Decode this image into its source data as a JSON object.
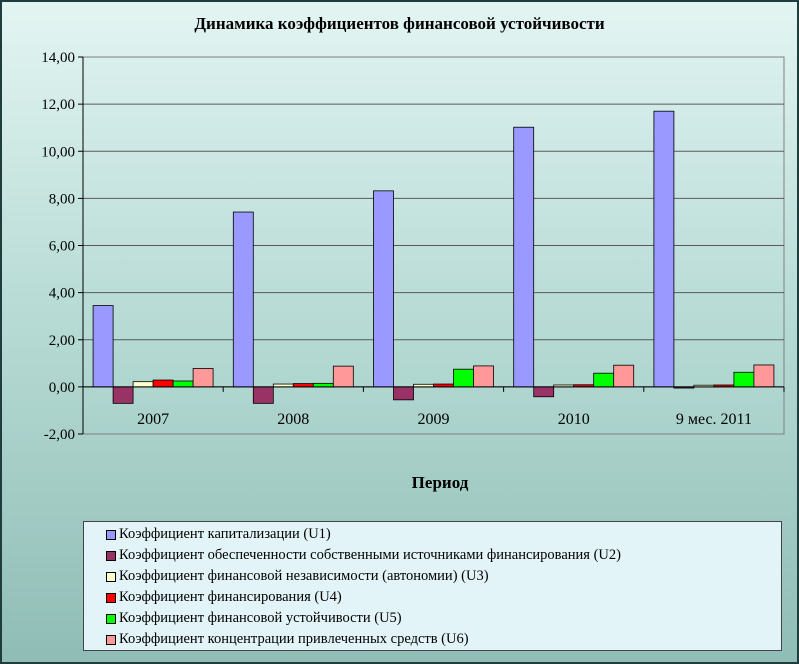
{
  "chart_data": {
    "type": "bar",
    "title": "Динамика коэффициентов  финансовой устойчивости",
    "xlabel": "Период",
    "ylabel": "",
    "ylim": [
      -2,
      14
    ],
    "yticks": [
      -2,
      0,
      2,
      4,
      6,
      8,
      10,
      12,
      14
    ],
    "ytick_labels": [
      "-2,00",
      "0,00",
      "2,00",
      "4,00",
      "6,00",
      "8,00",
      "10,00",
      "12,00",
      "14,00"
    ],
    "categories": [
      "2007",
      "2008",
      "2009",
      "2010",
      "9 мес. 2011"
    ],
    "grid": "horizontal",
    "legend_position": "bottom",
    "series": [
      {
        "name": "Коэффициент капитализации (U1)",
        "color": "#9999ff",
        "values": [
          3.45,
          7.42,
          8.32,
          11.02,
          11.7
        ]
      },
      {
        "name": "Коэффициент обеспеченности собственными источниками финансирования (U2)",
        "color": "#993366",
        "values": [
          -0.7,
          -0.7,
          -0.55,
          -0.42,
          -0.05
        ]
      },
      {
        "name": "Коэффициент финансовой независимости  (автономии) (U3)",
        "color": "#ffffcc",
        "values": [
          0.22,
          0.12,
          0.11,
          0.08,
          0.07
        ]
      },
      {
        "name": "Коэффициент финансирования (U4)",
        "color": "#ff0000",
        "values": [
          0.29,
          0.14,
          0.12,
          0.09,
          0.08
        ]
      },
      {
        "name": "Коэффициент финансовой устойчивости (U5)",
        "color": "#00ff00",
        "values": [
          0.25,
          0.15,
          0.75,
          0.58,
          0.62
        ]
      },
      {
        "name": "Коэффициент концентрации привлеченных средств (U6)",
        "color": "#ff9999",
        "values": [
          0.78,
          0.88,
          0.89,
          0.92,
          0.93
        ]
      }
    ]
  }
}
